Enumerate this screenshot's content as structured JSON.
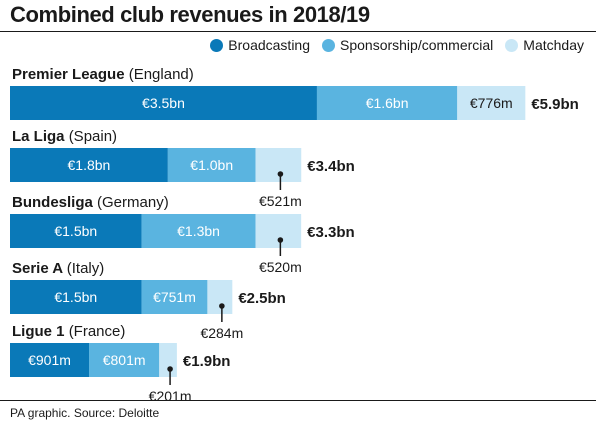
{
  "title": "Combined club revenues in 2018/19",
  "source": "PA graphic. Source: Deloitte",
  "colors": {
    "broadcasting": "#0a79b8",
    "sponsorship": "#5ab4e0",
    "matchday": "#c9e7f6"
  },
  "legend": [
    {
      "label": "Broadcasting",
      "color": "#0a79b8"
    },
    {
      "label": "Sponsorship/commercial",
      "color": "#5ab4e0"
    },
    {
      "label": "Matchday",
      "color": "#c9e7f6"
    }
  ],
  "chart_data": {
    "type": "bar",
    "orientation": "horizontal",
    "stacked": true,
    "unit": "€bn",
    "categories": [
      {
        "name": "Premier League",
        "country": "(England)",
        "total_label": "€5.9bn"
      },
      {
        "name": "La Liga",
        "country": "(Spain)",
        "total_label": "€3.4bn"
      },
      {
        "name": "Bundesliga",
        "country": "(Germany)",
        "total_label": "€3.3bn"
      },
      {
        "name": "Serie A",
        "country": "(Italy)",
        "total_label": "€2.5bn"
      },
      {
        "name": "Ligue 1",
        "country": "(France)",
        "total_label": "€1.9bn"
      }
    ],
    "series": [
      {
        "name": "Broadcasting",
        "values": [
          3.5,
          1.8,
          1.5,
          1.5,
          0.901
        ],
        "labels": [
          "€3.5bn",
          "€1.8bn",
          "€1.5bn",
          "€1.5bn",
          "€901m"
        ]
      },
      {
        "name": "Sponsorship/commercial",
        "values": [
          1.6,
          1.0,
          1.3,
          0.751,
          0.801
        ],
        "labels": [
          "€1.6bn",
          "€1.0bn",
          "€1.3bn",
          "€751m",
          "€801m"
        ]
      },
      {
        "name": "Matchday",
        "values": [
          0.776,
          0.521,
          0.52,
          0.284,
          0.201
        ],
        "labels": [
          "€776m",
          "€521m",
          "€520m",
          "€284m",
          "€201m"
        ]
      }
    ]
  }
}
